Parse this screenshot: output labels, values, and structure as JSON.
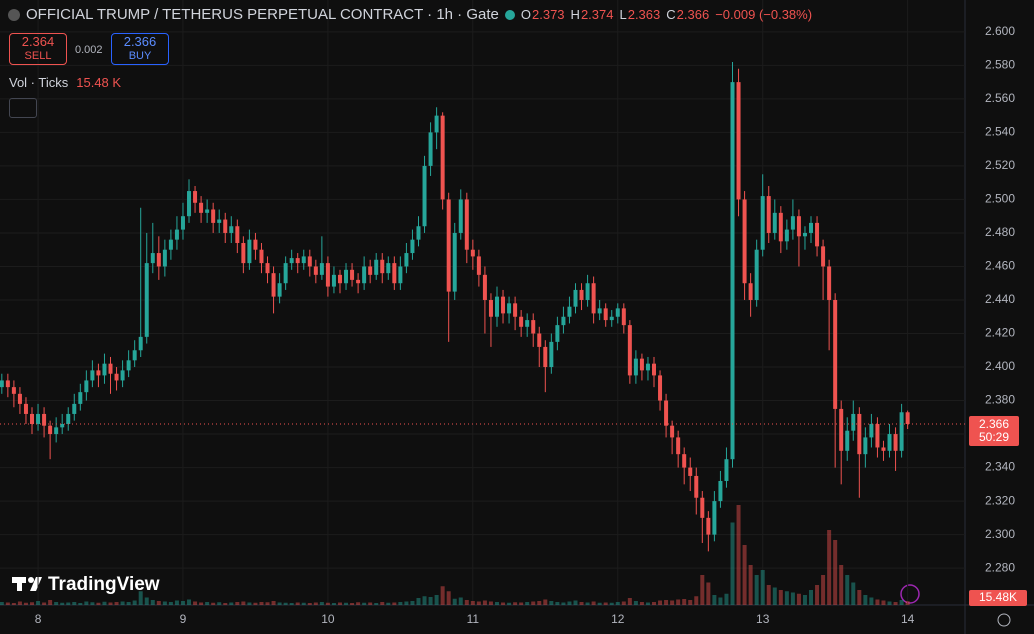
{
  "chart_data": {
    "type": "candlestick",
    "title": "OFFICIAL TRUMP / TETHERUS PERPETUAL CONTRACT · 1h · Gate",
    "ohlc_legend": [
      {
        "label": "O",
        "value": 2.373
      },
      {
        "label": "H",
        "value": 2.374
      },
      {
        "label": "L",
        "value": 2.363
      },
      {
        "label": "C",
        "value": 2.366
      }
    ],
    "change": "−0.009 (−0.38%)",
    "sell": {
      "price": 2.364,
      "label": "SELL"
    },
    "spread": 0.002,
    "buy": {
      "price": 2.366,
      "label": "BUY"
    },
    "volume_title": "Vol · Ticks",
    "volume_value_label": "15.48 K",
    "volume_axis_label": "15.48K",
    "last_price": 2.366,
    "countdown": "50:29",
    "brand": "TradingView",
    "up_color": "#26a69a",
    "down_color": "#ef5350",
    "ylim": [
      2.258,
      2.619
    ],
    "yticks": [
      {
        "value": 2.28,
        "label": "2.280"
      },
      {
        "value": 2.3,
        "label": "2.300"
      },
      {
        "value": 2.32,
        "label": "2.320"
      },
      {
        "value": 2.34,
        "label": "2.340"
      },
      {
        "value": 2.36,
        "label": "2.360"
      },
      {
        "value": 2.38,
        "label": "2.380"
      },
      {
        "value": 2.4,
        "label": "2.400"
      },
      {
        "value": 2.42,
        "label": "2.420"
      },
      {
        "value": 2.44,
        "label": "2.440"
      },
      {
        "value": 2.46,
        "label": "2.460"
      },
      {
        "value": 2.48,
        "label": "2.480"
      },
      {
        "value": 2.5,
        "label": "2.500"
      },
      {
        "value": 2.52,
        "label": "2.520"
      },
      {
        "value": 2.54,
        "label": "2.540"
      },
      {
        "value": 2.56,
        "label": "2.560"
      },
      {
        "value": 2.58,
        "label": "2.580"
      },
      {
        "value": 2.6,
        "label": "2.600"
      }
    ],
    "xlim": [
      -0.3,
      159.5
    ],
    "xticks": [
      {
        "value": 6,
        "label": "8"
      },
      {
        "value": 30,
        "label": "9"
      },
      {
        "value": 54,
        "label": "10"
      },
      {
        "value": 78,
        "label": "11"
      },
      {
        "value": 102,
        "label": "12"
      },
      {
        "value": 126,
        "label": "13"
      },
      {
        "value": 150,
        "label": "14"
      }
    ],
    "open": [
      2.388,
      2.392,
      2.388,
      2.384,
      2.378,
      2.372,
      2.366,
      2.372,
      2.365,
      2.36,
      2.364,
      2.366,
      2.372,
      2.378,
      2.385,
      2.392,
      2.398,
      2.395,
      2.402,
      2.396,
      2.392,
      2.398,
      2.404,
      2.41,
      2.418,
      2.462,
      2.468,
      2.46,
      2.47,
      2.476,
      2.482,
      2.49,
      2.505,
      2.498,
      2.492,
      2.494,
      2.486,
      2.488,
      2.48,
      2.484,
      2.474,
      2.462,
      2.476,
      2.47,
      2.462,
      2.456,
      2.442,
      2.45,
      2.462,
      2.465,
      2.462,
      2.466,
      2.46,
      2.455,
      2.462,
      2.448,
      2.455,
      2.45,
      2.458,
      2.452,
      2.45,
      2.46,
      2.455,
      2.464,
      2.456,
      2.462,
      2.45,
      2.46,
      2.468,
      2.476,
      2.484,
      2.52,
      2.54,
      2.55,
      2.5,
      2.445,
      2.48,
      2.5,
      2.47,
      2.466,
      2.455,
      2.44,
      2.43,
      2.442,
      2.432,
      2.438,
      2.43,
      2.424,
      2.428,
      2.42,
      2.412,
      2.4,
      2.415,
      2.425,
      2.43,
      2.436,
      2.446,
      2.44,
      2.45,
      2.432,
      2.435,
      2.428,
      2.43,
      2.435,
      2.425,
      2.395,
      2.405,
      2.398,
      2.402,
      2.395,
      2.38,
      2.365,
      2.358,
      2.348,
      2.34,
      2.335,
      2.322,
      2.31,
      2.3,
      2.32,
      2.332,
      2.345,
      2.57,
      2.5,
      2.45,
      2.44,
      2.47,
      2.502,
      2.48,
      2.492,
      2.475,
      2.482,
      2.49,
      2.478,
      2.48,
      2.486,
      2.472,
      2.46,
      2.44,
      2.375,
      2.35,
      2.362,
      2.372,
      2.348,
      2.358,
      2.366,
      2.352,
      2.35,
      2.36,
      2.35,
      2.373
    ],
    "high": [
      2.396,
      2.396,
      2.392,
      2.388,
      2.382,
      2.376,
      2.378,
      2.376,
      2.368,
      2.37,
      2.372,
      2.376,
      2.384,
      2.39,
      2.398,
      2.404,
      2.402,
      2.408,
      2.406,
      2.4,
      2.404,
      2.41,
      2.416,
      2.495,
      2.48,
      2.486,
      2.478,
      2.476,
      2.482,
      2.49,
      2.498,
      2.512,
      2.508,
      2.502,
      2.5,
      2.498,
      2.494,
      2.492,
      2.49,
      2.488,
      2.478,
      2.482,
      2.48,
      2.474,
      2.466,
      2.46,
      2.456,
      2.466,
      2.47,
      2.468,
      2.47,
      2.47,
      2.464,
      2.478,
      2.466,
      2.46,
      2.458,
      2.462,
      2.462,
      2.456,
      2.466,
      2.464,
      2.468,
      2.468,
      2.466,
      2.466,
      2.466,
      2.474,
      2.482,
      2.49,
      2.526,
      2.546,
      2.555,
      2.552,
      2.504,
      2.486,
      2.506,
      2.504,
      2.476,
      2.47,
      2.46,
      2.444,
      2.448,
      2.446,
      2.442,
      2.442,
      2.434,
      2.432,
      2.432,
      2.424,
      2.416,
      2.42,
      2.43,
      2.436,
      2.442,
      2.45,
      2.45,
      2.455,
      2.454,
      2.44,
      2.438,
      2.434,
      2.438,
      2.438,
      2.428,
      2.41,
      2.408,
      2.406,
      2.406,
      2.398,
      2.384,
      2.368,
      2.362,
      2.352,
      2.346,
      2.34,
      2.326,
      2.314,
      2.326,
      2.338,
      2.352,
      2.582,
      2.578,
      2.505,
      2.456,
      2.476,
      2.515,
      2.508,
      2.5,
      2.496,
      2.488,
      2.5,
      2.494,
      2.484,
      2.49,
      2.49,
      2.476,
      2.464,
      2.444,
      2.38,
      2.37,
      2.38,
      2.376,
      2.364,
      2.372,
      2.37,
      2.356,
      2.366,
      2.364,
      2.378,
      2.374
    ],
    "low": [
      2.384,
      2.382,
      2.376,
      2.372,
      2.366,
      2.36,
      2.362,
      2.358,
      2.345,
      2.355,
      2.36,
      2.362,
      2.368,
      2.374,
      2.38,
      2.388,
      2.388,
      2.39,
      2.384,
      2.386,
      2.388,
      2.394,
      2.4,
      2.406,
      2.414,
      2.456,
      2.452,
      2.454,
      2.464,
      2.47,
      2.476,
      2.486,
      2.492,
      2.486,
      2.486,
      2.48,
      2.48,
      2.474,
      2.474,
      2.468,
      2.456,
      2.458,
      2.464,
      2.456,
      2.45,
      2.432,
      2.438,
      2.446,
      2.458,
      2.456,
      2.458,
      2.454,
      2.45,
      2.452,
      2.442,
      2.444,
      2.444,
      2.446,
      2.448,
      2.444,
      2.446,
      2.45,
      2.452,
      2.45,
      2.452,
      2.446,
      2.446,
      2.456,
      2.464,
      2.472,
      2.48,
      2.514,
      2.53,
      2.494,
      2.415,
      2.44,
      2.476,
      2.462,
      2.458,
      2.448,
      2.42,
      2.412,
      2.424,
      2.426,
      2.426,
      2.422,
      2.418,
      2.418,
      2.412,
      2.4,
      2.385,
      2.396,
      2.41,
      2.42,
      2.426,
      2.432,
      2.434,
      2.436,
      2.426,
      2.428,
      2.424,
      2.424,
      2.426,
      2.42,
      2.39,
      2.39,
      2.392,
      2.392,
      2.388,
      2.374,
      2.358,
      2.348,
      2.34,
      2.33,
      2.326,
      2.312,
      2.295,
      2.29,
      2.296,
      2.316,
      2.328,
      2.34,
      2.49,
      2.44,
      2.43,
      2.436,
      2.466,
      2.474,
      2.476,
      2.468,
      2.47,
      2.476,
      2.46,
      2.47,
      2.474,
      2.466,
      2.44,
      2.41,
      2.34,
      2.33,
      2.344,
      2.356,
      2.322,
      2.34,
      2.352,
      2.346,
      2.344,
      2.346,
      2.338,
      2.346,
      2.363
    ],
    "close": [
      2.392,
      2.388,
      2.384,
      2.378,
      2.372,
      2.366,
      2.372,
      2.365,
      2.36,
      2.364,
      2.366,
      2.372,
      2.378,
      2.385,
      2.392,
      2.398,
      2.395,
      2.402,
      2.396,
      2.392,
      2.398,
      2.404,
      2.41,
      2.418,
      2.462,
      2.468,
      2.46,
      2.47,
      2.476,
      2.482,
      2.49,
      2.505,
      2.498,
      2.492,
      2.494,
      2.486,
      2.488,
      2.48,
      2.484,
      2.474,
      2.462,
      2.476,
      2.47,
      2.462,
      2.456,
      2.442,
      2.45,
      2.462,
      2.465,
      2.462,
      2.466,
      2.46,
      2.455,
      2.462,
      2.448,
      2.455,
      2.45,
      2.458,
      2.452,
      2.45,
      2.46,
      2.455,
      2.464,
      2.456,
      2.462,
      2.45,
      2.46,
      2.468,
      2.476,
      2.484,
      2.52,
      2.54,
      2.55,
      2.5,
      2.445,
      2.48,
      2.5,
      2.47,
      2.466,
      2.455,
      2.44,
      2.43,
      2.442,
      2.432,
      2.438,
      2.43,
      2.424,
      2.428,
      2.42,
      2.412,
      2.4,
      2.415,
      2.425,
      2.43,
      2.436,
      2.446,
      2.44,
      2.45,
      2.432,
      2.435,
      2.428,
      2.43,
      2.435,
      2.425,
      2.395,
      2.405,
      2.398,
      2.402,
      2.395,
      2.38,
      2.365,
      2.358,
      2.348,
      2.34,
      2.335,
      2.322,
      2.31,
      2.3,
      2.32,
      2.332,
      2.345,
      2.57,
      2.5,
      2.45,
      2.44,
      2.47,
      2.502,
      2.48,
      2.492,
      2.475,
      2.482,
      2.49,
      2.478,
      2.48,
      2.486,
      2.472,
      2.46,
      2.44,
      2.375,
      2.35,
      2.362,
      2.372,
      2.348,
      2.358,
      2.366,
      2.352,
      2.35,
      2.36,
      2.35,
      2.373,
      2.366
    ],
    "volume": [
      12,
      10,
      8,
      14,
      9,
      11,
      16,
      10,
      20,
      12,
      9,
      10,
      12,
      8,
      14,
      11,
      9,
      13,
      10,
      12,
      14,
      12,
      18,
      55,
      30,
      20,
      16,
      14,
      12,
      18,
      16,
      22,
      14,
      10,
      12,
      9,
      11,
      8,
      10,
      12,
      14,
      10,
      9,
      12,
      11,
      16,
      10,
      9,
      8,
      10,
      9,
      8,
      10,
      12,
      9,
      8,
      10,
      9,
      8,
      11,
      9,
      10,
      8,
      12,
      9,
      10,
      12,
      14,
      16,
      28,
      35,
      32,
      40,
      75,
      55,
      25,
      30,
      20,
      16,
      14,
      18,
      14,
      12,
      10,
      9,
      11,
      10,
      12,
      14,
      16,
      22,
      16,
      12,
      10,
      14,
      18,
      12,
      10,
      14,
      9,
      10,
      9,
      12,
      14,
      28,
      16,
      12,
      10,
      12,
      18,
      20,
      18,
      22,
      24,
      20,
      35,
      120,
      90,
      40,
      30,
      45,
      330,
      400,
      240,
      160,
      120,
      140,
      80,
      70,
      60,
      55,
      50,
      45,
      40,
      60,
      80,
      120,
      300,
      260,
      160,
      120,
      90,
      60,
      40,
      30,
      22,
      18,
      14,
      12,
      20,
      15.48
    ]
  }
}
